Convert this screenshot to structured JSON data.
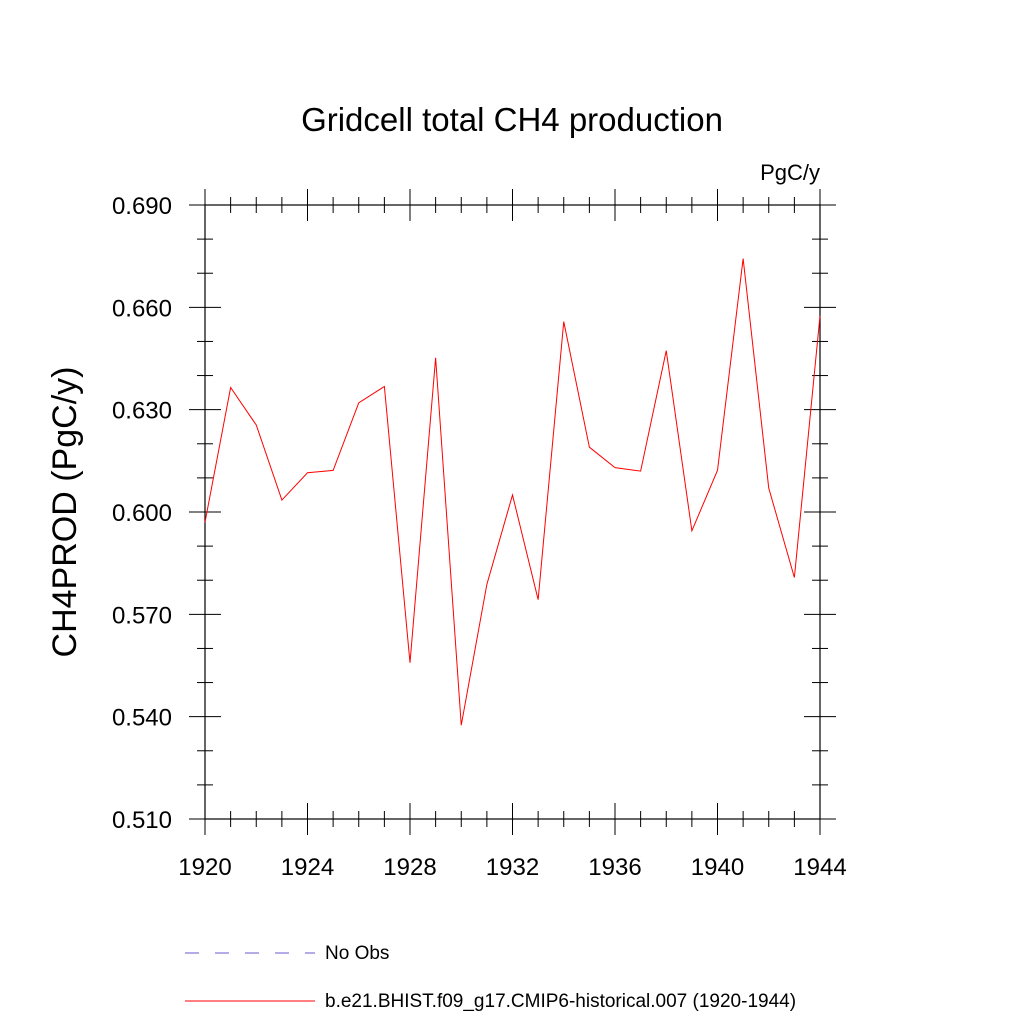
{
  "chart_data": {
    "type": "line",
    "title": "Gridcell total CH4 production",
    "units": "PgC/y",
    "ylabel": "CH4PROD  (PgC/y)",
    "xlabel": "",
    "xlim": [
      1920,
      1944
    ],
    "ylim": [
      0.51,
      0.69
    ],
    "x_major_ticks": [
      1920,
      1924,
      1928,
      1932,
      1936,
      1940,
      1944
    ],
    "x_minor_step": 1,
    "y_major_ticks": [
      0.51,
      0.54,
      0.57,
      0.6,
      0.63,
      0.66,
      0.69
    ],
    "y_tick_labels": [
      "0.510",
      "0.540",
      "0.570",
      "0.600",
      "0.630",
      "0.660",
      "0.690"
    ],
    "y_minor_step": 0.01,
    "x": [
      1920,
      1921,
      1922,
      1923,
      1924,
      1925,
      1926,
      1927,
      1928,
      1929,
      1930,
      1931,
      1932,
      1933,
      1934,
      1935,
      1936,
      1937,
      1938,
      1939,
      1940,
      1941,
      1942,
      1943,
      1944
    ],
    "series": [
      {
        "name": "b.e21.BHIST.f09_g17.CMIP6-historical.007 (1920-1944)",
        "color": "#ff0000",
        "style": "solid",
        "values": [
          0.597,
          0.6365,
          0.6255,
          0.6035,
          0.6115,
          0.6122,
          0.632,
          0.6368,
          0.5558,
          0.6452,
          0.5375,
          0.5788,
          0.605,
          0.5743,
          0.6558,
          0.619,
          0.613,
          0.612,
          0.6473,
          0.5945,
          0.6122,
          0.6743,
          0.607,
          0.5808,
          0.6575
        ]
      }
    ],
    "legend": [
      {
        "label": "No Obs",
        "color": "#6a5acd",
        "style": "dashed"
      },
      {
        "label": "b.e21.BHIST.f09_g17.CMIP6-historical.007 (1920-1944)",
        "color": "#ff0000",
        "style": "solid"
      }
    ],
    "legend_position": "bottom",
    "grid": false
  }
}
